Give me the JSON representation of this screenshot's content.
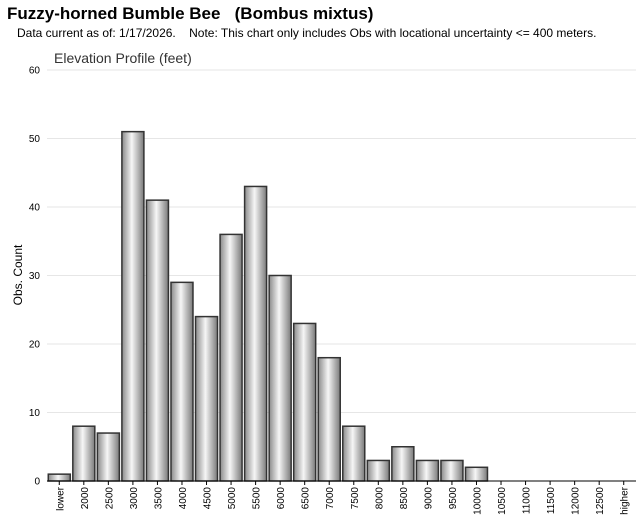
{
  "header": {
    "title": "Fuzzy-horned Bumble Bee   (Bombus mixtus)",
    "note": "Data current as of: 1/17/2026.    Note: This chart only includes Obs with locational uncertainty <= 400 meters."
  },
  "chart_data": {
    "type": "bar",
    "title": "Elevation Profile (feet)",
    "xlabel": "",
    "ylabel": "Obs. Count",
    "ylim": [
      0,
      60
    ],
    "yticks": [
      0,
      10,
      20,
      30,
      40,
      50,
      60
    ],
    "grid": true,
    "categories": [
      "lower",
      "2000",
      "2500",
      "3000",
      "3500",
      "4000",
      "4500",
      "5000",
      "5500",
      "6000",
      "6500",
      "7000",
      "7500",
      "8000",
      "8500",
      "9000",
      "9500",
      "10000",
      "10500",
      "11000",
      "11500",
      "12000",
      "12500",
      "higher"
    ],
    "values": [
      1,
      8,
      7,
      51,
      41,
      29,
      24,
      36,
      43,
      30,
      23,
      18,
      8,
      3,
      5,
      3,
      3,
      2,
      0,
      0,
      0,
      0,
      0,
      0
    ],
    "colors": {
      "bar_light": "#f4f4f4",
      "bar_dark": "#7a7a7a",
      "bar_stroke": "#333333",
      "grid": "#e6e6e6",
      "axis": "#000000"
    }
  }
}
